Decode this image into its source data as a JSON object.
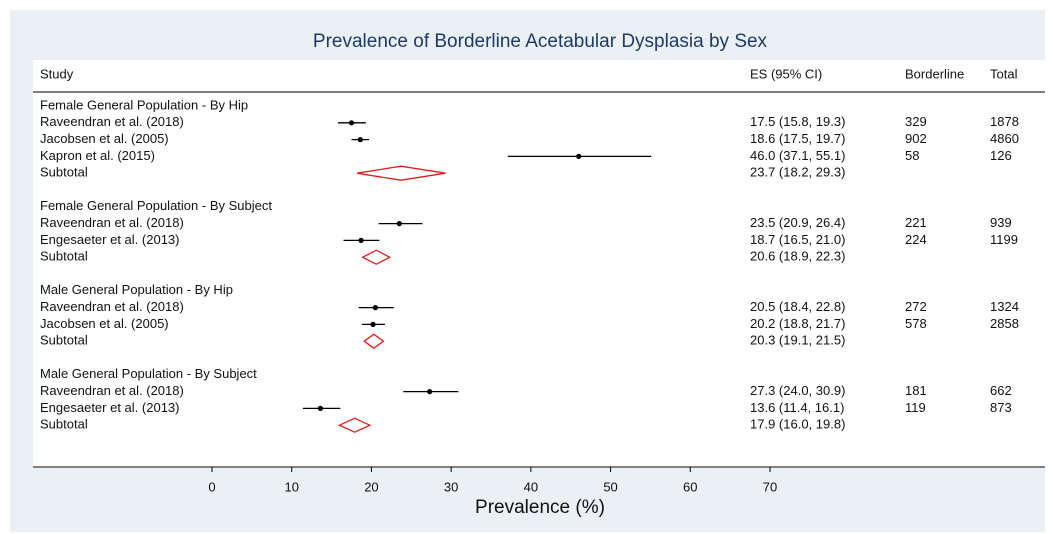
{
  "chart_data": {
    "type": "forest",
    "title": "Prevalence of Borderline Acetabular Dysplasia by Sex",
    "columns": [
      "Study",
      "ES (95% CI)",
      "Borderline",
      "Total"
    ],
    "x_label": "Prevalence (%)",
    "xlim": [
      0,
      70
    ],
    "xticks": [
      0,
      10,
      20,
      30,
      40,
      50,
      60,
      70
    ],
    "colors": {
      "study": "#000000",
      "subtotal": "#e41a1c"
    },
    "groups": [
      {
        "name": "Female General Population - By Hip",
        "studies": [
          {
            "name": "Raveendran et al. (2018)",
            "es": 17.5,
            "lo": 15.8,
            "hi": 19.3,
            "es_label": "17.5 (15.8, 19.3)",
            "borderline": 329,
            "total": 1878
          },
          {
            "name": "Jacobsen et al. (2005)",
            "es": 18.6,
            "lo": 17.5,
            "hi": 19.7,
            "es_label": "18.6 (17.5, 19.7)",
            "borderline": 902,
            "total": 4860
          },
          {
            "name": "Kapron et al. (2015)",
            "es": 46.0,
            "lo": 37.1,
            "hi": 55.1,
            "es_label": "46.0 (37.1, 55.1)",
            "borderline": 58,
            "total": 126
          }
        ],
        "subtotal": {
          "name": "Subtotal",
          "es": 23.7,
          "lo": 18.2,
          "hi": 29.3,
          "es_label": "23.7 (18.2, 29.3)"
        }
      },
      {
        "name": "Female General Population - By Subject",
        "studies": [
          {
            "name": "Raveendran et al. (2018)",
            "es": 23.5,
            "lo": 20.9,
            "hi": 26.4,
            "es_label": "23.5 (20.9, 26.4)",
            "borderline": 221,
            "total": 939
          },
          {
            "name": "Engesaeter et al. (2013)",
            "es": 18.7,
            "lo": 16.5,
            "hi": 21.0,
            "es_label": "18.7 (16.5, 21.0)",
            "borderline": 224,
            "total": 1199
          }
        ],
        "subtotal": {
          "name": "Subtotal",
          "es": 20.6,
          "lo": 18.9,
          "hi": 22.3,
          "es_label": "20.6 (18.9, 22.3)"
        }
      },
      {
        "name": "Male General Population - By Hip",
        "studies": [
          {
            "name": "Raveendran et al. (2018)",
            "es": 20.5,
            "lo": 18.4,
            "hi": 22.8,
            "es_label": "20.5 (18.4, 22.8)",
            "borderline": 272,
            "total": 1324
          },
          {
            "name": "Jacobsen et al. (2005)",
            "es": 20.2,
            "lo": 18.8,
            "hi": 21.7,
            "es_label": "20.2 (18.8, 21.7)",
            "borderline": 578,
            "total": 2858
          }
        ],
        "subtotal": {
          "name": "Subtotal",
          "es": 20.3,
          "lo": 19.1,
          "hi": 21.5,
          "es_label": "20.3 (19.1, 21.5)"
        }
      },
      {
        "name": "Male General Population - By Subject",
        "studies": [
          {
            "name": "Raveendran et al. (2018)",
            "es": 27.3,
            "lo": 24.0,
            "hi": 30.9,
            "es_label": "27.3 (24.0, 30.9)",
            "borderline": 181,
            "total": 662
          },
          {
            "name": "Engesaeter et al. (2013)",
            "es": 13.6,
            "lo": 11.4,
            "hi": 16.1,
            "es_label": "13.6 (11.4, 16.1)",
            "borderline": 119,
            "total": 873
          }
        ],
        "subtotal": {
          "name": "Subtotal",
          "es": 17.9,
          "lo": 16.0,
          "hi": 19.8,
          "es_label": "17.9 (16.0, 19.8)"
        }
      }
    ]
  }
}
